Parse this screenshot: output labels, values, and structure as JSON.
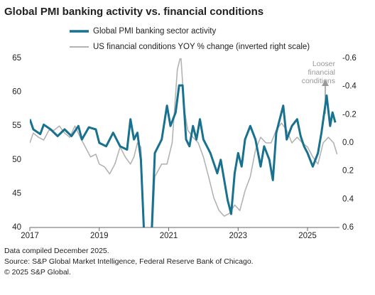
{
  "chart_data": {
    "type": "line",
    "title": "Global PMI banking activity vs. financial conditions",
    "annotation": "Looser financial conditions",
    "xlim": [
      2017,
      2025.92
    ],
    "xticks": [
      2017,
      2019,
      2021,
      2023,
      2025
    ],
    "ylim": [
      40,
      65
    ],
    "yticks": [
      40,
      45,
      50,
      55,
      60,
      65
    ],
    "y2lim": [
      -0.6,
      0.6
    ],
    "y2_inverted": true,
    "y2ticks": [
      -0.6,
      -0.4,
      -0.2,
      {
        "value": 0,
        "label": "0.0"
      },
      0.2,
      0.4,
      0.6
    ],
    "grid": false,
    "series": [
      {
        "name": "Global PMI banking sector activity",
        "color": "#17718f",
        "x": [
          2017.0,
          2017.1,
          2017.3,
          2017.4,
          2017.6,
          2017.8,
          2018.0,
          2018.2,
          2018.4,
          2018.5,
          2018.7,
          2018.9,
          2019.0,
          2019.2,
          2019.4,
          2019.6,
          2019.8,
          2019.9,
          2020.0,
          2020.1,
          2020.2,
          2020.3,
          2020.5,
          2020.6,
          2020.8,
          2020.95,
          2021.05,
          2021.2,
          2021.3,
          2021.4,
          2021.5,
          2021.6,
          2021.7,
          2021.8,
          2021.9,
          2022.0,
          2022.2,
          2022.4,
          2022.5,
          2022.6,
          2022.7,
          2022.8,
          2022.9,
          2023.0,
          2023.1,
          2023.2,
          2023.35,
          2023.5,
          2023.65,
          2023.75,
          2023.9,
          2024.0,
          2024.1,
          2024.3,
          2024.4,
          2024.55,
          2024.7,
          2024.8,
          2024.9,
          2025.0,
          2025.15,
          2025.3,
          2025.4,
          2025.55,
          2025.65,
          2025.72,
          2025.8
        ],
        "values": [
          56,
          54.5,
          53.8,
          55.2,
          54.5,
          53.5,
          54.5,
          53.5,
          55,
          53,
          54.8,
          54.5,
          52.5,
          52,
          54,
          52,
          51.5,
          56,
          53,
          54,
          50,
          38,
          38,
          51,
          53,
          58,
          55,
          57,
          61,
          61,
          53,
          52,
          55,
          53,
          56,
          53,
          51,
          48,
          50,
          47,
          44,
          42,
          48,
          51,
          49,
          53,
          55,
          53,
          49,
          52,
          50,
          47,
          54,
          58,
          53,
          55,
          56,
          53.5,
          52,
          51,
          49,
          51,
          54,
          59.5,
          55,
          57,
          55.5
        ]
      },
      {
        "name": "US financial conditions YOY % change (inverted right scale)",
        "color": "#b3b3b3",
        "axis": "y2",
        "x": [
          2017.0,
          2017.1,
          2017.25,
          2017.4,
          2017.55,
          2017.7,
          2017.85,
          2018.0,
          2018.15,
          2018.3,
          2018.45,
          2018.6,
          2018.75,
          2018.9,
          2019.0,
          2019.15,
          2019.3,
          2019.45,
          2019.6,
          2019.75,
          2019.9,
          2020.0,
          2020.1,
          2020.2,
          2020.3,
          2020.5,
          2020.6,
          2020.8,
          2020.95,
          2021.1,
          2021.25,
          2021.35,
          2021.45,
          2021.55,
          2021.7,
          2021.85,
          2022.0,
          2022.15,
          2022.3,
          2022.45,
          2022.6,
          2022.75,
          2022.9,
          2023.05,
          2023.2,
          2023.35,
          2023.5,
          2023.65,
          2023.8,
          2023.95,
          2024.1,
          2024.25,
          2024.4,
          2024.55,
          2024.7,
          2024.85,
          2025.0,
          2025.15,
          2025.3,
          2025.45,
          2025.6,
          2025.75,
          2025.85
        ],
        "values": [
          0.0,
          -0.07,
          -0.04,
          -0.02,
          -0.09,
          -0.09,
          -0.12,
          -0.07,
          -0.04,
          -0.12,
          -0.04,
          0.03,
          0.1,
          0.08,
          0.15,
          0.17,
          0.22,
          0.15,
          0.03,
          0.1,
          0.15,
          0.1,
          0.0,
          0.03,
          0.72,
          0.77,
          0.24,
          0.15,
          0.15,
          0.0,
          -0.52,
          -0.62,
          -0.24,
          -0.09,
          -0.04,
          0.0,
          0.1,
          0.24,
          0.39,
          0.48,
          0.52,
          0.5,
          0.44,
          0.48,
          0.34,
          0.24,
          0.05,
          -0.04,
          0.0,
          0.0,
          -0.09,
          -0.14,
          -0.09,
          0.0,
          -0.04,
          0.0,
          0.03,
          0.1,
          0.15,
          0.0,
          -0.04,
          0.0,
          0.08
        ]
      }
    ]
  },
  "footer": [
    "Data compiled December 2025.",
    "Source: S&P Global Market Intelligence, Federal Reserve Bank of Chicago.",
    "© 2025 S&P Global."
  ]
}
